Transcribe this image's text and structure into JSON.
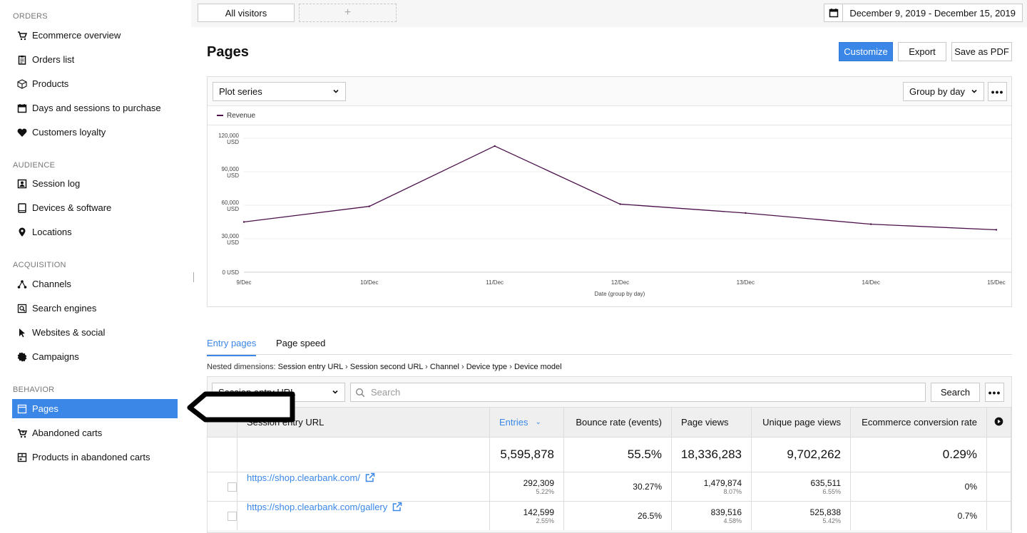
{
  "sidebar": {
    "sections": [
      {
        "title": "ORDERS",
        "items": [
          {
            "label": "Ecommerce overview",
            "icon": "cart-icon"
          },
          {
            "label": "Orders list",
            "icon": "clipboard-icon"
          },
          {
            "label": "Products",
            "icon": "box-icon"
          },
          {
            "label": "Days and sessions to purchase",
            "icon": "calendar-icon"
          },
          {
            "label": "Customers loyalty",
            "icon": "heart-icon"
          }
        ]
      },
      {
        "title": "AUDIENCE",
        "items": [
          {
            "label": "Session log",
            "icon": "user-card-icon"
          },
          {
            "label": "Devices & software",
            "icon": "tablet-icon"
          },
          {
            "label": "Locations",
            "icon": "pin-icon"
          }
        ]
      },
      {
        "title": "ACQUISITION",
        "items": [
          {
            "label": "Channels",
            "icon": "network-icon"
          },
          {
            "label": "Search engines",
            "icon": "search-page-icon"
          },
          {
            "label": "Websites & social",
            "icon": "cursor-icon"
          },
          {
            "label": "Campaigns",
            "icon": "badge-icon"
          }
        ]
      },
      {
        "title": "BEHAVIOR",
        "items": [
          {
            "label": "Pages",
            "icon": "window-icon",
            "active": true
          },
          {
            "label": "Abandoned carts",
            "icon": "cart-x-icon"
          },
          {
            "label": "Products in abandoned carts",
            "icon": "box-x-icon"
          }
        ]
      }
    ]
  },
  "topbar": {
    "segment": "All visitors",
    "add_segment": "+",
    "date_range": "December 9, 2019 - December 15, 2019"
  },
  "header": {
    "title": "Pages",
    "customize": "Customize",
    "export": "Export",
    "save_pdf": "Save as PDF"
  },
  "chart_panel": {
    "plot_series": "Plot series",
    "group_by": "Group by day",
    "more": "•••"
  },
  "chart_data": {
    "type": "line",
    "categories": [
      "9/Dec",
      "10/Dec",
      "11/Dec",
      "12/Dec",
      "13/Dec",
      "14/Dec",
      "15/Dec"
    ],
    "series": [
      {
        "name": "Revenue",
        "values": [
          45000,
          59000,
          113000,
          61000,
          53000,
          43000,
          38000
        ],
        "color": "#4a0f4a"
      }
    ],
    "yticks": [
      {
        "value": 0,
        "label": [
          "0 USD"
        ]
      },
      {
        "value": 30000,
        "label": [
          "30,000",
          "USD"
        ]
      },
      {
        "value": 60000,
        "label": [
          "60,000",
          "USD"
        ]
      },
      {
        "value": 90000,
        "label": [
          "90,000",
          "USD"
        ]
      },
      {
        "value": 120000,
        "label": [
          "120,000",
          "USD"
        ]
      }
    ],
    "ylim": [
      0,
      120000
    ],
    "xlabel": "Date (group by day)",
    "ylabel": ""
  },
  "tabs": [
    {
      "label": "Entry pages",
      "active": true
    },
    {
      "label": "Page speed",
      "active": false
    }
  ],
  "nested": {
    "prefix": "Nested dimensions:",
    "dims": [
      "Session entry URL",
      "Session second URL",
      "Channel",
      "Device type",
      "Device model"
    ],
    "sep": "›"
  },
  "table": {
    "dimension_select": "Session entry URL",
    "search_placeholder": "Search",
    "search_button": "Search",
    "more": "•••",
    "columns": [
      "Session entry URL",
      "Entries",
      "Bounce rate (events)",
      "Page views",
      "Unique page views",
      "Ecommerce conversion rate"
    ],
    "totals": [
      "5,595,878",
      "55.5%",
      "18,336,283",
      "9,702,262",
      "0.29%"
    ],
    "rows": [
      {
        "url": "https://shop.clearbank.com/",
        "entries": "292,309",
        "entries_pct": "5.22%",
        "bounce": "30.27%",
        "views": "1,479,874",
        "views_pct": "8.07%",
        "unique": "635,511",
        "unique_pct": "6.55%",
        "conv": "0%"
      },
      {
        "url": "https://shop.clearbank.com/gallery",
        "entries": "142,599",
        "entries_pct": "2.55%",
        "bounce": "26.5%",
        "views": "839,516",
        "views_pct": "4.58%",
        "unique": "525,838",
        "unique_pct": "5.42%",
        "conv": "0.7%"
      }
    ]
  }
}
